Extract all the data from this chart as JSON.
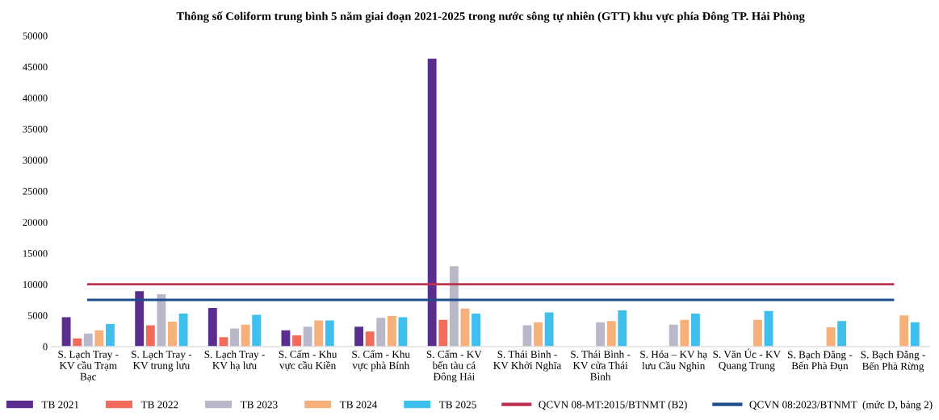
{
  "chart_data": {
    "type": "bar",
    "title": "Thông số Coliform trung bình 5 năm giai đoạn 2021-2025 trong nước sông tự nhiên (GTT) khu vực phía Đông TP. Hải Phòng",
    "categories": [
      "S. Lạch Tray -\nKV cầu Trạm\nBạc",
      "S. Lạch Tray -\nKV trung lưu",
      "S. Lạch Tray -\nKV hạ lưu",
      "S. Cấm - Khu\nvực cầu Kiền",
      "S. Cấm - Khu\nvực phà Bính",
      "S. Cấm - KV\nbến tàu cá\nĐông Hải",
      "S. Thái Bình -\nKV Khởi Nghĩa",
      "S. Thái Bình -\nKV cửa Thái\nBình",
      "S. Hóa – KV hạ\nlưu Cầu Nghìn",
      "S. Văn Úc - KV\nQuang Trung",
      "S. Bạch Đằng -\nBến Phà Đụn",
      "S. Bạch Đằng -\nBến Phà Rừng"
    ],
    "series": [
      {
        "name": "TB 2021",
        "color": "#5b2d8e",
        "values": [
          4700,
          8900,
          6200,
          2600,
          3200,
          46300,
          null,
          null,
          null,
          null,
          null,
          null
        ]
      },
      {
        "name": "TB 2022",
        "color": "#f26b5b",
        "values": [
          1300,
          3400,
          1500,
          1800,
          2400,
          4300,
          null,
          null,
          null,
          null,
          null,
          null
        ]
      },
      {
        "name": "TB 2023",
        "color": "#b8b8c8",
        "values": [
          2100,
          8400,
          2900,
          3200,
          4600,
          12900,
          3400,
          3900,
          3500,
          null,
          null,
          null
        ]
      },
      {
        "name": "TB 2024",
        "color": "#f7b07a",
        "values": [
          2600,
          4000,
          3500,
          4200,
          4900,
          6100,
          3900,
          4100,
          4300,
          4300,
          3100,
          5000
        ]
      },
      {
        "name": "TB 2025",
        "color": "#3fbfee",
        "values": [
          3600,
          5300,
          5100,
          4200,
          4700,
          5300,
          5500,
          5800,
          5300,
          5700,
          4100,
          3900
        ]
      },
      {
        "name": "QCVN 08-MT:2015/BTNMT (B2)",
        "type": "line",
        "color": "#c0304f",
        "values": [
          10000,
          10000,
          10000,
          10000,
          10000,
          10000,
          10000,
          10000,
          10000,
          10000,
          10000,
          10000
        ]
      },
      {
        "name": "QCVN 08:2023/BTNMT  (mức D, bảng 2)",
        "type": "line",
        "color": "#1f4e8c",
        "values": [
          7500,
          7500,
          7500,
          7500,
          7500,
          7500,
          7500,
          7500,
          7500,
          7500,
          7500,
          7500
        ]
      }
    ],
    "ylim": [
      0,
      50000
    ],
    "yticks": [
      0,
      5000,
      10000,
      15000,
      20000,
      25000,
      30000,
      35000,
      40000,
      45000,
      50000
    ],
    "legend": "bottom"
  }
}
